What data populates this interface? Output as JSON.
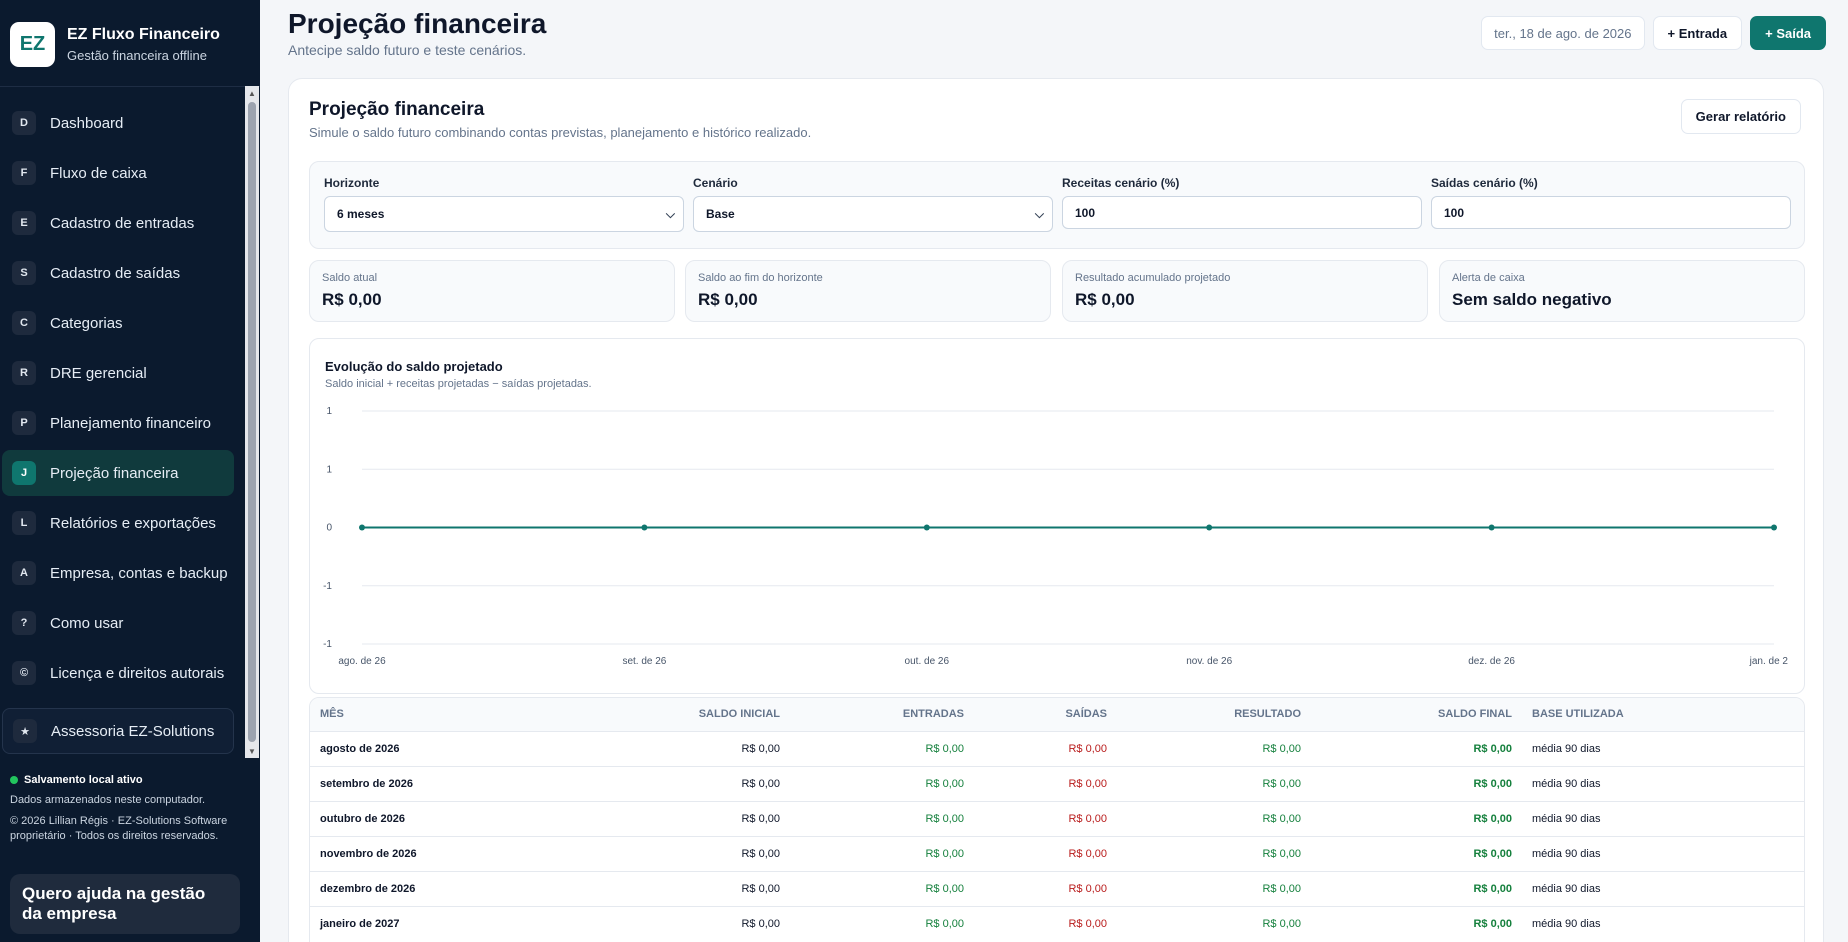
{
  "brand": {
    "logo": "EZ",
    "title": "EZ Fluxo Financeiro",
    "subtitle": "Gestão financeira offline"
  },
  "nav": [
    {
      "badge": "D",
      "label": "Dashboard"
    },
    {
      "badge": "F",
      "label": "Fluxo de caixa"
    },
    {
      "badge": "E",
      "label": "Cadastro de entradas"
    },
    {
      "badge": "S",
      "label": "Cadastro de saídas"
    },
    {
      "badge": "C",
      "label": "Categorias"
    },
    {
      "badge": "R",
      "label": "DRE gerencial"
    },
    {
      "badge": "P",
      "label": "Planejamento financeiro"
    },
    {
      "badge": "J",
      "label": "Projeção financeira",
      "active": true
    },
    {
      "badge": "L",
      "label": "Relatórios e exportações"
    },
    {
      "badge": "A",
      "label": "Empresa, contas e backup"
    },
    {
      "badge": "?",
      "label": "Como usar"
    },
    {
      "badge": "©",
      "label": "Licença e direitos autorais"
    },
    {
      "badge": "★",
      "label": "Assessoria EZ-Solutions"
    }
  ],
  "footer": {
    "save_status": "Salvamento local ativo",
    "save_desc": "Dados armazenados neste computador.",
    "copyright": "© 2026 Lillian Régis · EZ-Solutions Software proprietário · Todos os direitos reservados.",
    "help": "Quero ajuda na gestão da empresa"
  },
  "header": {
    "title": "Projeção financeira",
    "subtitle": "Antecipe saldo futuro e teste cenários."
  },
  "top_actions": {
    "date": "ter., 18 de ago. de 2026",
    "entrada": "+ Entrada",
    "saida": "+ Saída"
  },
  "card": {
    "title": "Projeção financeira",
    "subtitle": "Simule o saldo futuro combinando contas previstas, planejamento e histórico realizado.",
    "report_button": "Gerar relatório"
  },
  "filters": {
    "horizonte": {
      "label": "Horizonte",
      "value": "6 meses"
    },
    "cenario": {
      "label": "Cenário",
      "value": "Base"
    },
    "receitas": {
      "label": "Receitas cenário (%)",
      "value": "100"
    },
    "saidas": {
      "label": "Saídas cenário (%)",
      "value": "100"
    }
  },
  "kpis": [
    {
      "label": "Saldo atual",
      "value": "R$ 0,00"
    },
    {
      "label": "Saldo ao fim do horizonte",
      "value": "R$ 0,00"
    },
    {
      "label": "Resultado acumulado projetado",
      "value": "R$ 0,00"
    },
    {
      "label": "Alerta de caixa",
      "value": "Sem saldo negativo"
    }
  ],
  "chart": {
    "title": "Evolução do saldo projetado",
    "subtitle": "Saldo inicial + receitas projetadas − saídas projetadas."
  },
  "chart_data": {
    "type": "line",
    "x": [
      "ago. de 26",
      "set. de 26",
      "out. de 26",
      "nov. de 26",
      "dez. de 26",
      "jan. de 2"
    ],
    "series": [
      {
        "values": [
          0,
          0,
          0,
          0,
          0,
          0
        ]
      }
    ],
    "yticks": [
      "1",
      "1",
      "0",
      "-1",
      "-1"
    ],
    "ylim": [
      -1,
      1
    ],
    "grid": true,
    "color": "#0f766e"
  },
  "table": {
    "headers": [
      "MÊS",
      "SALDO INICIAL",
      "ENTRADAS",
      "SAÍDAS",
      "RESULTADO",
      "SALDO FINAL",
      "BASE UTILIZADA"
    ],
    "rows": [
      [
        "agosto de 2026",
        "R$ 0,00",
        "R$ 0,00",
        "R$ 0,00",
        "R$ 0,00",
        "R$ 0,00",
        "média 90 dias"
      ],
      [
        "setembro de 2026",
        "R$ 0,00",
        "R$ 0,00",
        "R$ 0,00",
        "R$ 0,00",
        "R$ 0,00",
        "média 90 dias"
      ],
      [
        "outubro de 2026",
        "R$ 0,00",
        "R$ 0,00",
        "R$ 0,00",
        "R$ 0,00",
        "R$ 0,00",
        "média 90 dias"
      ],
      [
        "novembro de 2026",
        "R$ 0,00",
        "R$ 0,00",
        "R$ 0,00",
        "R$ 0,00",
        "R$ 0,00",
        "média 90 dias"
      ],
      [
        "dezembro de 2026",
        "R$ 0,00",
        "R$ 0,00",
        "R$ 0,00",
        "R$ 0,00",
        "R$ 0,00",
        "média 90 dias"
      ],
      [
        "janeiro de 2027",
        "R$ 0,00",
        "R$ 0,00",
        "R$ 0,00",
        "R$ 0,00",
        "R$ 0,00",
        "média 90 dias"
      ]
    ]
  },
  "colors": {
    "accent": "#0f766e",
    "sidebar": "#0b1a2e",
    "positive": "#15803d",
    "negative": "#b91c1c"
  }
}
